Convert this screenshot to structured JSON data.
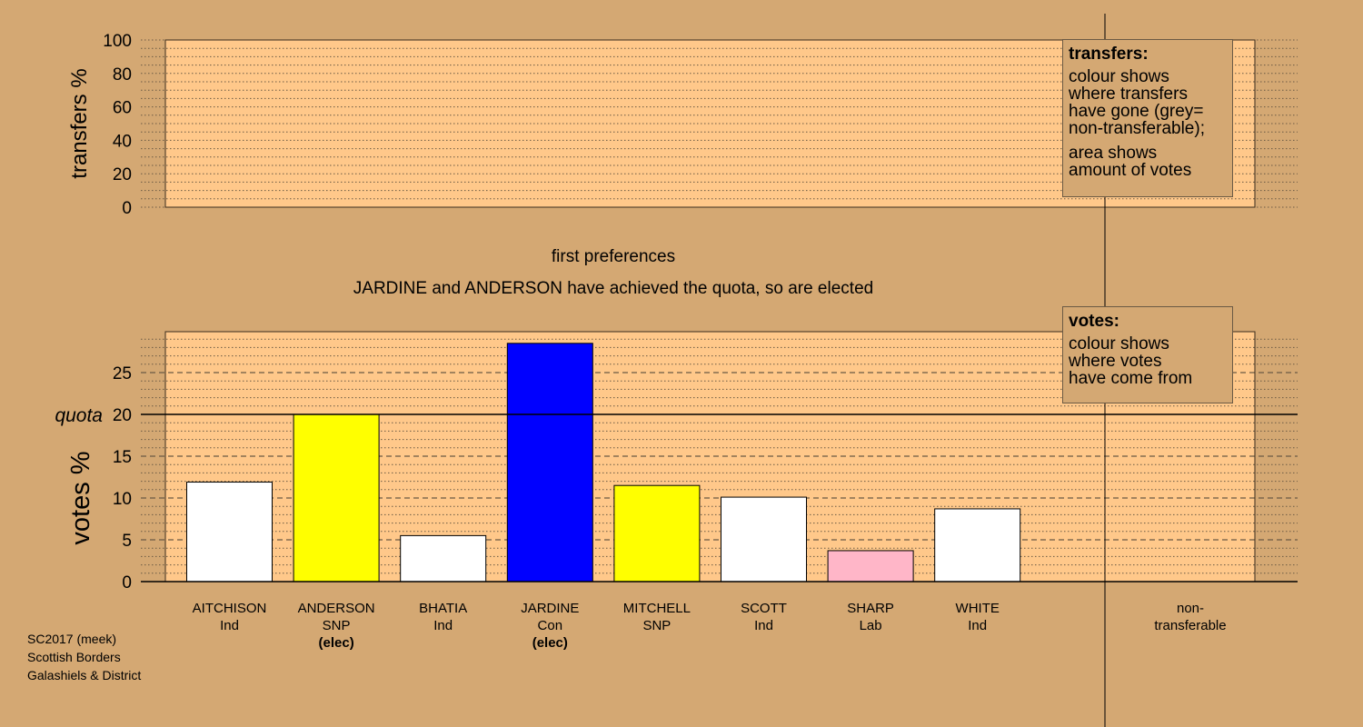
{
  "colors": {
    "background": "#D4A873",
    "plot_area": "#FFC88A",
    "white": "#FFFFFF",
    "snp": "#FFFF00",
    "con": "#0000FF",
    "lab": "#FFB6C8"
  },
  "header": {
    "stage": "first preferences",
    "message": "JARDINE and ANDERSON have achieved the quota, so are elected"
  },
  "legend_transfers": {
    "title": "transfers:",
    "lines1": [
      "colour shows",
      "where transfers",
      "have gone (grey=",
      "non-transferable);"
    ],
    "lines2": [
      "area shows",
      "amount of votes"
    ]
  },
  "legend_votes": {
    "title": "votes:",
    "lines": [
      "colour shows",
      "where votes",
      "have come from"
    ]
  },
  "footer": {
    "line1": "SC2017 (meek)",
    "line2": "Scottish Borders",
    "line3": "Galashiels & District"
  },
  "chart_data": [
    {
      "type": "bar",
      "name": "transfers",
      "ylabel": "transfers %",
      "ylim": [
        0,
        100
      ],
      "yticks": [
        0,
        20,
        40,
        60,
        80,
        100
      ],
      "values": []
    },
    {
      "type": "bar",
      "name": "votes",
      "ylabel": "votes %",
      "ylim": [
        0,
        30
      ],
      "yticks": [
        0,
        5,
        10,
        15,
        20,
        25
      ],
      "quota": 20,
      "quota_label": "quota",
      "categories": [
        {
          "name": "AITCHISON",
          "party": "Ind",
          "status": "",
          "value": 11.9,
          "color": "#FFFFFF"
        },
        {
          "name": "ANDERSON",
          "party": "SNP",
          "status": "(elec)",
          "value": 20.0,
          "color": "#FFFF00"
        },
        {
          "name": "BHATIA",
          "party": "Ind",
          "status": "",
          "value": 5.5,
          "color": "#FFFFFF"
        },
        {
          "name": "JARDINE",
          "party": "Con",
          "status": "(elec)",
          "value": 28.5,
          "color": "#0000FF"
        },
        {
          "name": "MITCHELL",
          "party": "SNP",
          "status": "",
          "value": 11.5,
          "color": "#FFFF00"
        },
        {
          "name": "SCOTT",
          "party": "Ind",
          "status": "",
          "value": 10.1,
          "color": "#FFFFFF"
        },
        {
          "name": "SHARP",
          "party": "Lab",
          "status": "",
          "value": 3.7,
          "color": "#FFB6C8"
        },
        {
          "name": "WHITE",
          "party": "Ind",
          "status": "",
          "value": 8.7,
          "color": "#FFFFFF"
        }
      ],
      "extra_category": {
        "line1": "non-",
        "line2": "transferable",
        "value": 0
      }
    }
  ]
}
